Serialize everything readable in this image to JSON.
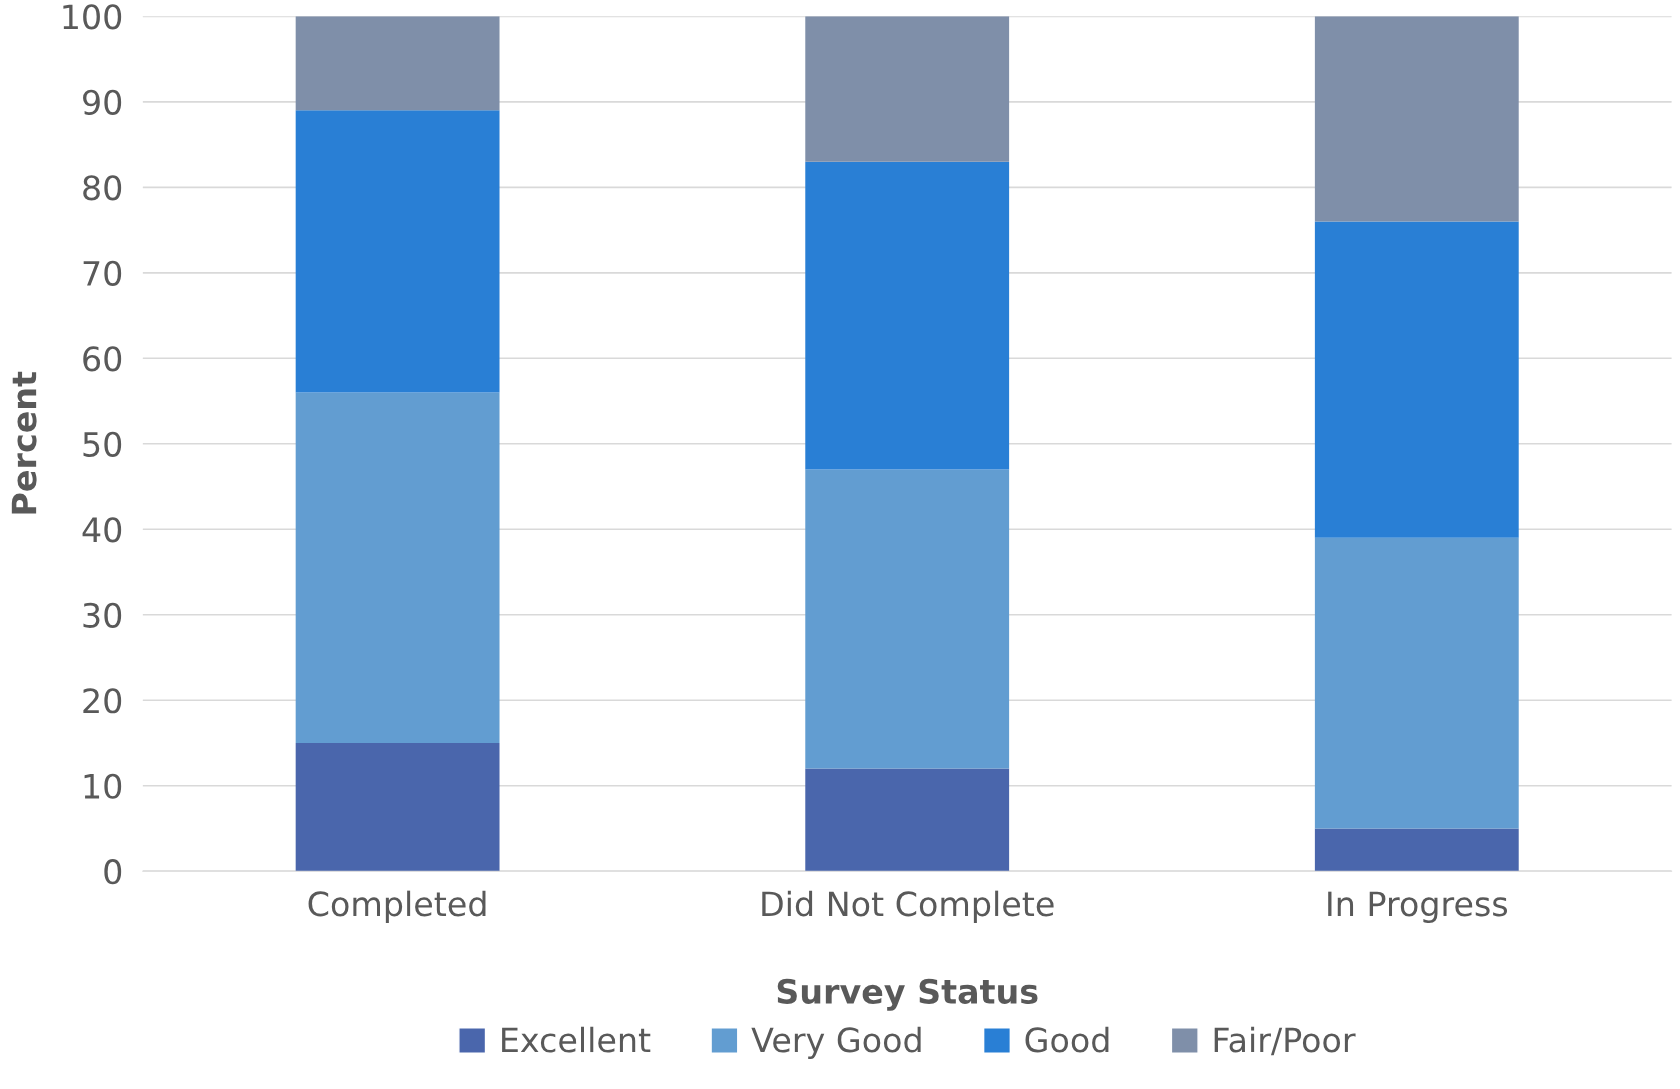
{
  "chart_data": {
    "type": "bar",
    "stacked": true,
    "xlabel": "Survey Status",
    "ylabel": "Percent",
    "categories": [
      "Completed",
      "Did Not Complete",
      "In Progress"
    ],
    "series": [
      {
        "name": "Excellent",
        "color": "#4a66ac",
        "values": [
          15,
          12,
          5
        ]
      },
      {
        "name": "Very Good",
        "color": "#629dd1",
        "values": [
          41,
          35,
          34
        ]
      },
      {
        "name": "Good",
        "color": "#297fd5",
        "values": [
          33,
          36,
          37
        ]
      },
      {
        "name": "Fair/Poor",
        "color": "#7f8fa9",
        "values": [
          11,
          17,
          24
        ]
      }
    ],
    "ylim": [
      0,
      100
    ],
    "yticks": [
      0,
      10,
      20,
      30,
      40,
      50,
      60,
      70,
      80,
      90,
      100
    ],
    "grid": "y",
    "legend": "bottom"
  }
}
